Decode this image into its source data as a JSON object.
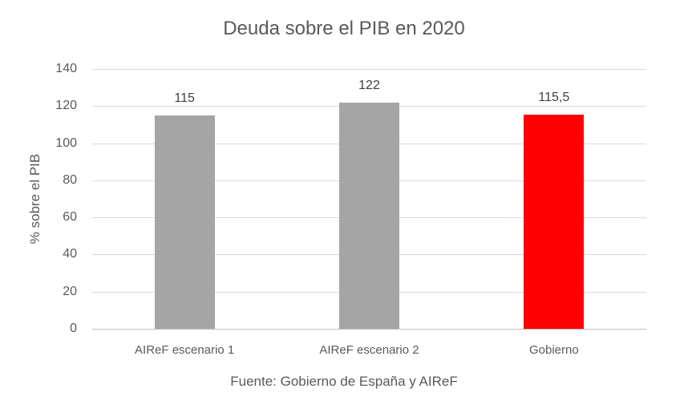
{
  "chart_data": {
    "type": "bar",
    "title": "Deuda sobre el PIB en 2020",
    "xlabel": "Fuente: Gobierno de España y AIReF",
    "ylabel": "% sobre el PIB",
    "categories": [
      "AIReF escenario 1",
      "AIReF escenario 2",
      "Gobierno"
    ],
    "values": [
      115,
      122,
      115.5
    ],
    "data_labels": [
      "115",
      "122",
      "115,5"
    ],
    "colors": [
      "#a5a5a5",
      "#a5a5a5",
      "#ff0000"
    ],
    "ylim": [
      0,
      140
    ],
    "yticks": [
      "0",
      "20",
      "40",
      "60",
      "80",
      "100",
      "120",
      "140"
    ],
    "grid": true,
    "legend": null
  }
}
